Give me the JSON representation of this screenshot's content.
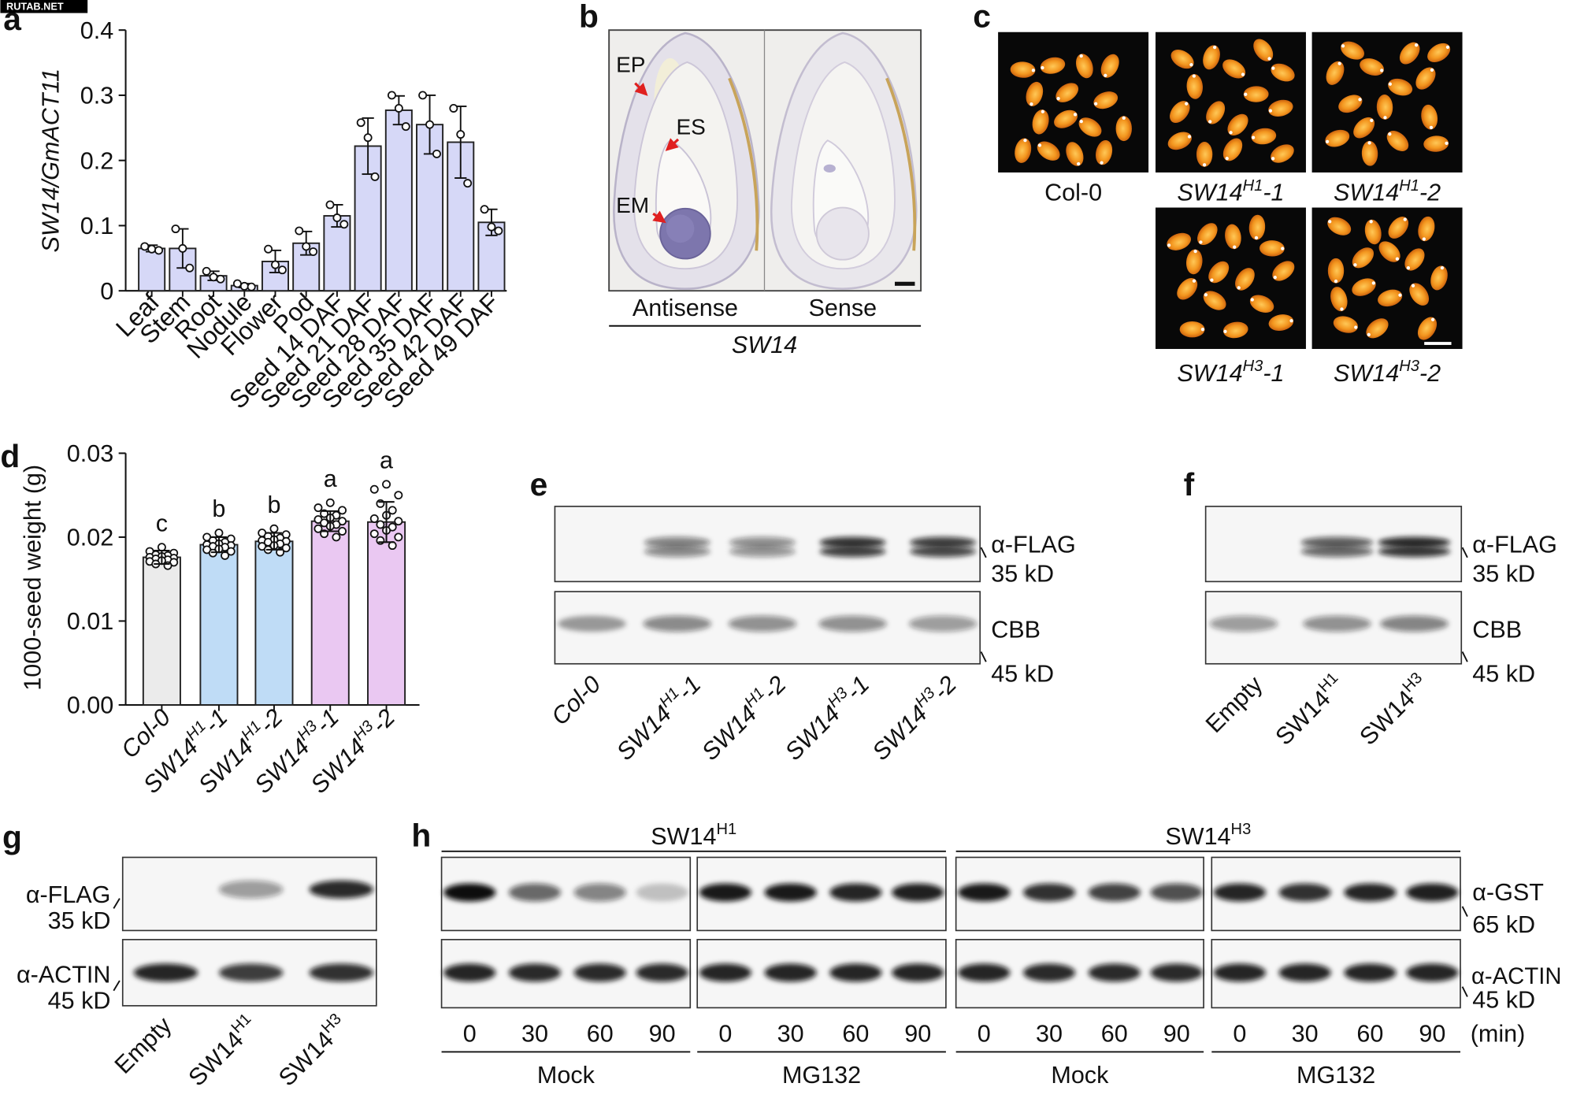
{
  "watermark": "RUTAB.NET",
  "panel_letters": [
    "a",
    "b",
    "c",
    "d",
    "e",
    "f",
    "g",
    "h"
  ],
  "colors": {
    "bar_a": "#d6d8f7",
    "col0": "#ebebeb",
    "h1": "#bfdcf6",
    "h3": "#eac8f2",
    "photo_bg": "#080808",
    "arrow": "#e02020",
    "blot_bg": "#f6f6f6",
    "band": "#111111"
  },
  "panel_b": {
    "ep": "EP",
    "es": "ES",
    "em": "EM",
    "antisense": "Antisense",
    "sense": "Sense",
    "gene": "SW14"
  },
  "panel_c": {
    "labels": [
      {
        "base": "Col-0"
      },
      {
        "base": "SW14",
        "sup": "H1",
        "suffix": "-1"
      },
      {
        "base": "SW14",
        "sup": "H1",
        "suffix": "-2"
      },
      {
        "base": "SW14",
        "sup": "H3",
        "suffix": "-1"
      },
      {
        "base": "SW14",
        "sup": "H3",
        "suffix": "-2"
      }
    ]
  },
  "panel_e": {
    "antibody": "α-FLAG",
    "size_top": "35 kD",
    "stain": "CBB",
    "size_bottom": "45 kD",
    "lanes": [
      {
        "base": "Col-0"
      },
      {
        "base": "SW14",
        "sup": "H1",
        "suffix": "-1"
      },
      {
        "base": "SW14",
        "sup": "H1",
        "suffix": "-2"
      },
      {
        "base": "SW14",
        "sup": "H3",
        "suffix": "-1"
      },
      {
        "base": "SW14",
        "sup": "H3",
        "suffix": "-2"
      }
    ],
    "flag_intensity": [
      0,
      0.55,
      0.5,
      0.92,
      0.88
    ],
    "cbb_intensity": [
      0.38,
      0.48,
      0.45,
      0.45,
      0.4
    ]
  },
  "panel_f": {
    "antibody": "α-FLAG",
    "size_top": "35 kD",
    "stain": "CBB",
    "size_bottom": "45 kD",
    "lanes": [
      {
        "base": "Empty"
      },
      {
        "base": "SW14",
        "sup": "H1"
      },
      {
        "base": "SW14",
        "sup": "H3"
      }
    ],
    "flag_intensity": [
      0,
      0.72,
      0.97
    ],
    "cbb_intensity": [
      0.4,
      0.45,
      0.5
    ]
  },
  "panel_g": {
    "antibody_top": "α-FLAG",
    "size_top": "35 kD",
    "antibody_bottom": "α-ACTIN",
    "size_bottom": "45 kD",
    "lanes": [
      {
        "base": "Empty"
      },
      {
        "base": "SW14",
        "sup": "H1"
      },
      {
        "base": "SW14",
        "sup": "H3"
      }
    ],
    "flag_intensity": [
      0,
      0.4,
      0.88
    ],
    "actin_intensity": [
      0.9,
      0.8,
      0.85
    ]
  },
  "panel_h": {
    "headers": [
      {
        "base": "SW14",
        "sup": "H1"
      },
      {
        "base": "SW14",
        "sup": "H3"
      }
    ],
    "treatments": [
      "Mock",
      "MG132",
      "Mock",
      "MG132"
    ],
    "times": [
      "0",
      "30",
      "60",
      "90"
    ],
    "time_unit": "(min)",
    "antibody_top": "α-GST",
    "size_top": "65 kD",
    "antibody_bottom": "α-ACTIN",
    "size_bottom": "45 kD",
    "gst_intensity": [
      [
        1.0,
        0.62,
        0.5,
        0.22
      ],
      [
        0.95,
        0.95,
        0.9,
        0.92
      ],
      [
        0.95,
        0.85,
        0.78,
        0.72
      ],
      [
        0.9,
        0.85,
        0.9,
        0.92
      ]
    ],
    "actin_intensity": [
      [
        0.9,
        0.88,
        0.88,
        0.88
      ],
      [
        0.9,
        0.9,
        0.9,
        0.9
      ],
      [
        0.9,
        0.88,
        0.88,
        0.88
      ],
      [
        0.9,
        0.9,
        0.9,
        0.9
      ]
    ]
  },
  "chart_data": [
    {
      "type": "bar",
      "ylabel": "SW14/GmACT11",
      "xlabel": "",
      "ylim": [
        0,
        0.4
      ],
      "yticks": [
        "0",
        "0.1",
        "0.2",
        "0.3",
        "0.4"
      ],
      "categories": [
        "Leaf",
        "Stem",
        "Root",
        "Nodule",
        "Flower",
        "Pod",
        "Seed 14 DAF",
        "Seed 21 DAF",
        "Seed 28 DAF",
        "Seed 35 DAF",
        "Seed 42 DAF",
        "Seed 49 DAF"
      ],
      "values": [
        0.065,
        0.065,
        0.023,
        0.008,
        0.045,
        0.073,
        0.115,
        0.222,
        0.277,
        0.255,
        0.228,
        0.105
      ],
      "error": [
        0.005,
        0.03,
        0.007,
        0.003,
        0.017,
        0.018,
        0.017,
        0.043,
        0.022,
        0.045,
        0.055,
        0.02
      ],
      "points": [
        [
          0.064,
          0.068,
          0.062
        ],
        [
          0.065,
          0.095,
          0.035
        ],
        [
          0.021,
          0.03,
          0.018
        ],
        [
          0.007,
          0.011,
          0.006
        ],
        [
          0.04,
          0.064,
          0.032
        ],
        [
          0.068,
          0.092,
          0.06
        ],
        [
          0.112,
          0.132,
          0.102
        ],
        [
          0.235,
          0.258,
          0.175
        ],
        [
          0.28,
          0.3,
          0.252
        ],
        [
          0.255,
          0.3,
          0.21
        ],
        [
          0.24,
          0.28,
          0.165
        ],
        [
          0.098,
          0.125,
          0.092
        ]
      ]
    },
    {
      "type": "bar",
      "ylabel": "1000-seed weight (g)",
      "xlabel": "",
      "ylim": [
        0,
        0.03
      ],
      "yticks": [
        "0.00",
        "0.01",
        "0.02",
        "0.03"
      ],
      "categories": [
        {
          "base": "Col-0"
        },
        {
          "base": "SW14",
          "sup": "H1",
          "suffix": "-1"
        },
        {
          "base": "SW14",
          "sup": "H1",
          "suffix": "-2"
        },
        {
          "base": "SW14",
          "sup": "H3",
          "suffix": "-1"
        },
        {
          "base": "SW14",
          "sup": "H3",
          "suffix": "-2"
        }
      ],
      "values": [
        0.0176,
        0.0191,
        0.0195,
        0.0219,
        0.0218
      ],
      "error": [
        0.0008,
        0.0009,
        0.001,
        0.0012,
        0.0024
      ],
      "letters": [
        "c",
        "b",
        "b",
        "a",
        "a"
      ],
      "points": [
        [
          0.0188,
          0.0183,
          0.0181,
          0.0179,
          0.0178,
          0.0177,
          0.0176,
          0.0175,
          0.0174,
          0.0173,
          0.0172,
          0.0171,
          0.017,
          0.0168,
          0.0166
        ],
        [
          0.0205,
          0.02,
          0.0198,
          0.0196,
          0.0194,
          0.0192,
          0.0191,
          0.019,
          0.0189,
          0.0188,
          0.0186,
          0.0185,
          0.0183,
          0.0181,
          0.0178
        ],
        [
          0.021,
          0.0205,
          0.0203,
          0.0201,
          0.0199,
          0.0197,
          0.0196,
          0.0195,
          0.0194,
          0.0192,
          0.019,
          0.0189,
          0.0187,
          0.0185,
          0.0182
        ],
        [
          0.0241,
          0.0235,
          0.0232,
          0.0228,
          0.0226,
          0.0223,
          0.0221,
          0.0219,
          0.0217,
          0.0215,
          0.0213,
          0.021,
          0.0207,
          0.0204,
          0.02
        ],
        [
          0.0263,
          0.0257,
          0.025,
          0.024,
          0.0232,
          0.0226,
          0.0222,
          0.0219,
          0.0215,
          0.0212,
          0.0208,
          0.0204,
          0.02,
          0.0196,
          0.019
        ]
      ]
    }
  ]
}
